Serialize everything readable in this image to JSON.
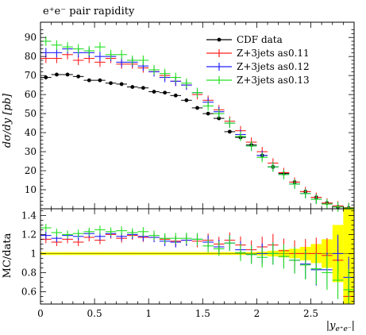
{
  "chart_data": [
    {
      "type": "scatter",
      "title": "e⁺e⁻ pair rapidity",
      "ylabel": "dσ/dy [pb]",
      "ylim": [
        0,
        98
      ],
      "xlim": [
        0,
        2.9
      ],
      "yticks": [
        "10",
        "20",
        "30",
        "40",
        "50",
        "60",
        "70",
        "80",
        "90"
      ],
      "grid": false,
      "legend_position": "top-right",
      "bin_width": 0.1,
      "series": [
        {
          "name": "CDF data",
          "color": "#000000",
          "marker": "dot",
          "x": [
            0.05,
            0.15,
            0.25,
            0.35,
            0.45,
            0.55,
            0.65,
            0.75,
            0.85,
            0.95,
            1.05,
            1.15,
            1.25,
            1.35,
            1.45,
            1.55,
            1.65,
            1.75,
            1.85,
            1.95,
            2.05,
            2.15,
            2.25,
            2.35,
            2.45,
            2.55,
            2.65,
            2.75,
            2.85
          ],
          "values": [
            69,
            70.5,
            70.5,
            69.5,
            67.5,
            67.5,
            66,
            65.5,
            64,
            63.5,
            61.5,
            61,
            59.5,
            57,
            53,
            50,
            47.5,
            40.5,
            37.5,
            33.5,
            28,
            22,
            18.5,
            14,
            9,
            6,
            3,
            1,
            0.4
          ]
        },
        {
          "name": "Z+3jets as0.11",
          "color": "#ff2020",
          "marker": "cross",
          "x": [
            0.05,
            0.15,
            0.25,
            0.35,
            0.45,
            0.55,
            0.65,
            0.75,
            0.85,
            0.95,
            1.05,
            1.15,
            1.25,
            1.35,
            1.45,
            1.55,
            1.65,
            1.75,
            1.85,
            1.95,
            2.05,
            2.15,
            2.25,
            2.35,
            2.45,
            2.55,
            2.65,
            2.75,
            2.85
          ],
          "values": [
            79,
            79,
            81,
            78,
            79,
            77,
            79,
            76,
            76,
            74,
            72,
            70,
            67,
            65,
            60,
            57,
            52,
            46,
            41,
            35,
            30,
            24,
            19,
            14,
            9,
            6,
            3,
            1.5,
            0.6
          ]
        },
        {
          "name": "Z+3jets as0.12",
          "color": "#2020ff",
          "marker": "cross",
          "x": [
            0.05,
            0.15,
            0.25,
            0.35,
            0.45,
            0.55,
            0.65,
            0.75,
            0.85,
            0.95,
            1.05,
            1.15,
            1.25,
            1.35,
            1.45,
            1.55,
            1.65,
            1.75,
            1.85,
            1.95,
            2.05,
            2.15,
            2.25,
            2.35,
            2.45,
            2.55,
            2.65,
            2.75,
            2.85
          ],
          "values": [
            82,
            82,
            84,
            82,
            82,
            80,
            80,
            77,
            77,
            75,
            72,
            69,
            67,
            65,
            61,
            56,
            51,
            45,
            39,
            33,
            28,
            22,
            18,
            13,
            8,
            5,
            2.5,
            1,
            0.3
          ]
        },
        {
          "name": "Z+3jets as0.13",
          "color": "#20e020",
          "marker": "cross",
          "x": [
            0.05,
            0.15,
            0.25,
            0.35,
            0.45,
            0.55,
            0.65,
            0.75,
            0.85,
            0.95,
            1.05,
            1.15,
            1.25,
            1.35,
            1.45,
            1.55,
            1.65,
            1.75,
            1.85,
            1.95,
            2.05,
            2.15,
            2.25,
            2.35,
            2.45,
            2.55,
            2.65,
            2.75,
            2.85
          ],
          "values": [
            88,
            86,
            85,
            84,
            83,
            85,
            81,
            81,
            78,
            78,
            73,
            71,
            69,
            66,
            61,
            54,
            50,
            45,
            38,
            33,
            27,
            22,
            18,
            13,
            8,
            5,
            2.5,
            1,
            0.4
          ]
        }
      ]
    },
    {
      "type": "scatter",
      "ylabel": "MC/data",
      "xlabel": "|y",
      "xlabel_sub": "e⁺e⁻",
      "xlabel_end": "|",
      "ylim": [
        0.47,
        1.47
      ],
      "xlim": [
        0,
        2.9
      ],
      "xticks": [
        "0",
        "0.5",
        "1",
        "1.5",
        "2",
        "2.5"
      ],
      "yticks": [
        "0.6",
        "0.8",
        "1",
        "1.2",
        "1.4"
      ],
      "reference_line": 1,
      "band_color": "#ffff00",
      "band": {
        "x": [
          0.05,
          0.15,
          0.25,
          0.35,
          0.45,
          0.55,
          0.65,
          0.75,
          0.85,
          0.95,
          1.05,
          1.15,
          1.25,
          1.35,
          1.45,
          1.55,
          1.65,
          1.75,
          1.85,
          1.95,
          2.05,
          2.15,
          2.25,
          2.35,
          2.45,
          2.55,
          2.65,
          2.75,
          2.85
        ],
        "low": [
          0.985,
          0.985,
          0.985,
          0.985,
          0.985,
          0.985,
          0.985,
          0.985,
          0.985,
          0.985,
          0.985,
          0.985,
          0.985,
          0.985,
          0.985,
          0.985,
          0.985,
          0.985,
          0.985,
          0.985,
          0.98,
          0.97,
          0.96,
          0.95,
          0.93,
          0.9,
          0.85,
          0.7,
          0.47
        ],
        "high": [
          1.015,
          1.015,
          1.015,
          1.015,
          1.015,
          1.015,
          1.015,
          1.015,
          1.015,
          1.015,
          1.015,
          1.015,
          1.015,
          1.015,
          1.015,
          1.015,
          1.015,
          1.015,
          1.015,
          1.015,
          1.02,
          1.03,
          1.04,
          1.05,
          1.07,
          1.1,
          1.15,
          1.3,
          1.47
        ]
      },
      "series": [
        {
          "name": "Z+3jets as0.11",
          "color": "#ff2020",
          "x": [
            0.05,
            0.15,
            0.25,
            0.35,
            0.45,
            0.55,
            0.65,
            0.75,
            0.85,
            0.95,
            1.05,
            1.15,
            1.25,
            1.35,
            1.45,
            1.55,
            1.65,
            1.75,
            1.85,
            1.95,
            2.05,
            2.15,
            2.25,
            2.35,
            2.45,
            2.55,
            2.65,
            2.75,
            2.85
          ],
          "values": [
            1.15,
            1.12,
            1.15,
            1.12,
            1.17,
            1.14,
            1.2,
            1.16,
            1.19,
            1.17,
            1.17,
            1.15,
            1.13,
            1.14,
            1.13,
            1.14,
            1.1,
            1.14,
            1.09,
            1.04,
            1.07,
            1.09,
            1.03,
            1.0,
            1.0,
            1.0,
            0.98,
            0.93,
            0.55
          ]
        },
        {
          "name": "Z+3jets as0.12",
          "color": "#2020ff",
          "x": [
            0.05,
            0.15,
            0.25,
            0.35,
            0.45,
            0.55,
            0.65,
            0.75,
            0.85,
            0.95,
            1.05,
            1.15,
            1.25,
            1.35,
            1.45,
            1.55,
            1.65,
            1.75,
            1.85,
            1.95,
            2.05,
            2.15,
            2.25,
            2.35,
            2.45,
            2.55,
            2.65,
            2.75,
            2.85
          ],
          "values": [
            1.19,
            1.16,
            1.19,
            1.18,
            1.21,
            1.18,
            1.21,
            1.18,
            1.2,
            1.18,
            1.17,
            1.13,
            1.12,
            1.14,
            1.15,
            1.12,
            1.07,
            1.11,
            1.04,
            0.99,
            1.0,
            1.0,
            0.97,
            0.93,
            0.89,
            0.83,
            0.83,
            1.0,
            0.75
          ]
        },
        {
          "name": "Z+3jets as0.13",
          "color": "#20e020",
          "x": [
            0.05,
            0.15,
            0.25,
            0.35,
            0.45,
            0.55,
            0.65,
            0.75,
            0.85,
            0.95,
            1.05,
            1.15,
            1.25,
            1.35,
            1.45,
            1.55,
            1.65,
            1.75,
            1.85,
            1.95,
            2.05,
            2.15,
            2.25,
            2.35,
            2.45,
            2.55,
            2.65,
            2.75,
            2.85
          ],
          "values": [
            1.27,
            1.22,
            1.2,
            1.21,
            1.23,
            1.25,
            1.23,
            1.24,
            1.22,
            1.23,
            1.19,
            1.16,
            1.16,
            1.16,
            1.15,
            1.08,
            1.05,
            1.11,
            1.01,
            0.99,
            0.96,
            1.0,
            0.97,
            0.93,
            0.88,
            0.84,
            0.8,
            0.72,
            0.62
          ]
        }
      ]
    }
  ]
}
